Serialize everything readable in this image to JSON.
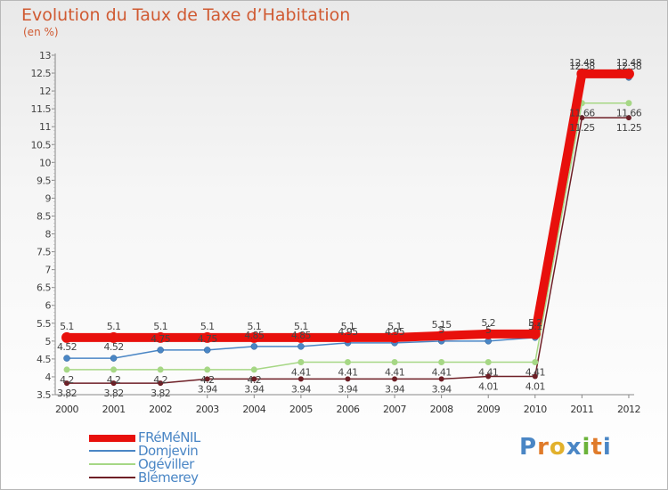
{
  "chart_data": {
    "type": "line",
    "title": "Evolution du Taux de Taxe d'Habitation",
    "ylabel": "(en %)",
    "xlabel": "",
    "categories": [
      "2000",
      "2001",
      "2002",
      "2003",
      "2004",
      "2005",
      "2006",
      "2007",
      "2008",
      "2009",
      "2010",
      "2011",
      "2012"
    ],
    "ylim": [
      3.5,
      13
    ],
    "yticks": [
      "3.5",
      "4",
      "4.5",
      "5",
      "5.5",
      "6",
      "6.5",
      "7",
      "7.5",
      "8",
      "8.5",
      "9",
      "9.5",
      "10",
      "10.5",
      "11",
      "11.5",
      "12",
      "12.5",
      "13"
    ],
    "grid": false,
    "legend_position": "bottom-left",
    "series": [
      {
        "name": "FRéMéNIL",
        "color": "#e8100c",
        "values": [
          5.1,
          5.1,
          5.1,
          5.1,
          5.1,
          5.1,
          5.1,
          5.1,
          5.15,
          5.2,
          5.2,
          12.48,
          12.48
        ],
        "labels": [
          "5.1",
          "5.1",
          "5.1",
          "5.1",
          "5.1",
          "5.1",
          "5.1",
          "5.1",
          "5.15",
          "5.2",
          "5.2",
          "12.48",
          "12.48"
        ]
      },
      {
        "name": "Domjevin",
        "color": "#4a86c5",
        "values": [
          4.52,
          4.52,
          4.75,
          4.75,
          4.85,
          4.85,
          4.95,
          4.95,
          5.0,
          5.0,
          5.1,
          12.38,
          12.38
        ],
        "labels": [
          "4.52",
          "4.52",
          "4.75",
          "4.75",
          "4.85",
          "4.85",
          "4.95",
          "4.95",
          "5",
          "5",
          "5.1",
          "12.38",
          "12.38"
        ]
      },
      {
        "name": "Ogéviller",
        "color": "#a6d785",
        "values": [
          4.2,
          4.2,
          4.2,
          4.2,
          4.2,
          4.41,
          4.41,
          4.41,
          4.41,
          4.41,
          4.41,
          11.66,
          11.66
        ],
        "labels": [
          "4.2",
          "4.2",
          "4.2",
          "4.2",
          "4.2",
          "4.41",
          "4.41",
          "4.41",
          "4.41",
          "4.41",
          "4.41",
          "11.66",
          "11.66"
        ]
      },
      {
        "name": "Blémerey",
        "color": "#6e1f26",
        "values": [
          3.82,
          3.82,
          3.82,
          3.94,
          3.94,
          3.94,
          3.94,
          3.94,
          3.94,
          4.01,
          4.01,
          11.25,
          11.25
        ],
        "labels": [
          "3.82",
          "3.82",
          "3.82",
          "3.94",
          "3.94",
          "3.94",
          "3.94",
          "3.94",
          "3.94",
          "4.01",
          "4.01",
          "11.25",
          "11.25"
        ]
      }
    ]
  },
  "header": {
    "title": "Evolution du Taux de Taxe d’Habitation",
    "unit": "(en %)"
  },
  "legend": {
    "items": [
      {
        "label": "FRéMéNIL",
        "color": "#e8100c"
      },
      {
        "label": "Domjevin",
        "color": "#4a86c5"
      },
      {
        "label": "Ogéviller",
        "color": "#a6d785"
      },
      {
        "label": "Blémerey",
        "color": "#6e1f26"
      }
    ]
  },
  "brand": {
    "letters": [
      "P",
      "r",
      "o",
      "x",
      "i",
      "t",
      "i"
    ],
    "colors": [
      "#4a86c5",
      "#e07b2a",
      "#e2b12c",
      "#4a86c5",
      "#6bb33a",
      "#e07b2a",
      "#4a86c5"
    ]
  }
}
